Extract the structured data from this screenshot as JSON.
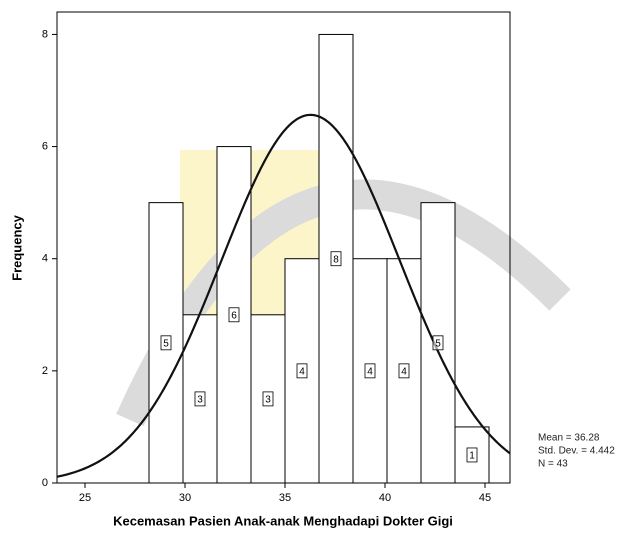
{
  "chart_data": {
    "type": "histogram",
    "x_label": "Kecemasan Pasien Anak-anak Menghadapi Dokter Gigi",
    "y_label": "Frequency",
    "bins": [
      28.2,
      29.9,
      31.6,
      33.3,
      35.0,
      36.7,
      38.4,
      40.1,
      41.8,
      43.5,
      45.2
    ],
    "values": [
      5,
      3,
      6,
      3,
      4,
      8,
      4,
      4,
      5,
      1
    ],
    "color": "#ffffff",
    "edge_color": "#000000",
    "xlim": [
      23.6,
      46.25
    ],
    "xticks": [
      25,
      30,
      35,
      40,
      45
    ],
    "ylim": [
      0,
      8.4
    ],
    "yticks": [
      0,
      2,
      4,
      6,
      8
    ],
    "grid": false,
    "normal_curve": true,
    "stats": {
      "mean": {
        "value": 36.28,
        "label": "Mean = 36.28"
      },
      "std_dev": {
        "value": 4.442,
        "label": "Std. Dev. = 4.442"
      },
      "n": {
        "value": 43,
        "label": "N = 43"
      }
    }
  }
}
